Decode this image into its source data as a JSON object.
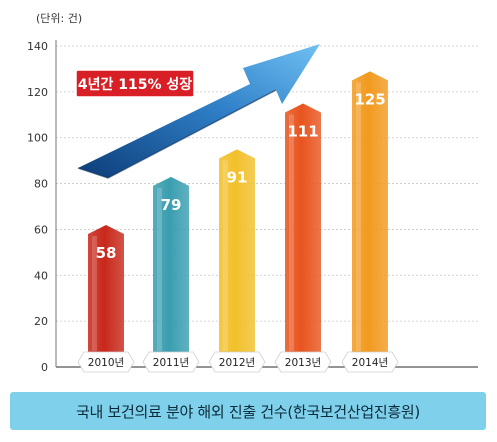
{
  "unit_label": "(단위: 건)",
  "caption": "국내 보건의료 분야 해외 진출 건수(한국보건산업진흥원)",
  "growth_badge": "4년간 115% 성장",
  "colors": {
    "badge": "#d81f26",
    "arrow": "#2f7fc8",
    "arrow_dark": "#0d3d78",
    "caption_bg": "#7fd0ea",
    "bars": [
      "#c8281a",
      "#3a9eb0",
      "#f2c02a",
      "#e8541e",
      "#f29a1f"
    ]
  },
  "chart_data": {
    "type": "bar",
    "categories": [
      "2010년",
      "2011년",
      "2012년",
      "2013년",
      "2014년"
    ],
    "values": [
      58,
      79,
      91,
      111,
      125
    ],
    "ylim": [
      0,
      140
    ],
    "yticks": [
      0,
      20,
      40,
      60,
      80,
      100,
      120,
      140
    ],
    "grid": true,
    "data_labels": true
  }
}
